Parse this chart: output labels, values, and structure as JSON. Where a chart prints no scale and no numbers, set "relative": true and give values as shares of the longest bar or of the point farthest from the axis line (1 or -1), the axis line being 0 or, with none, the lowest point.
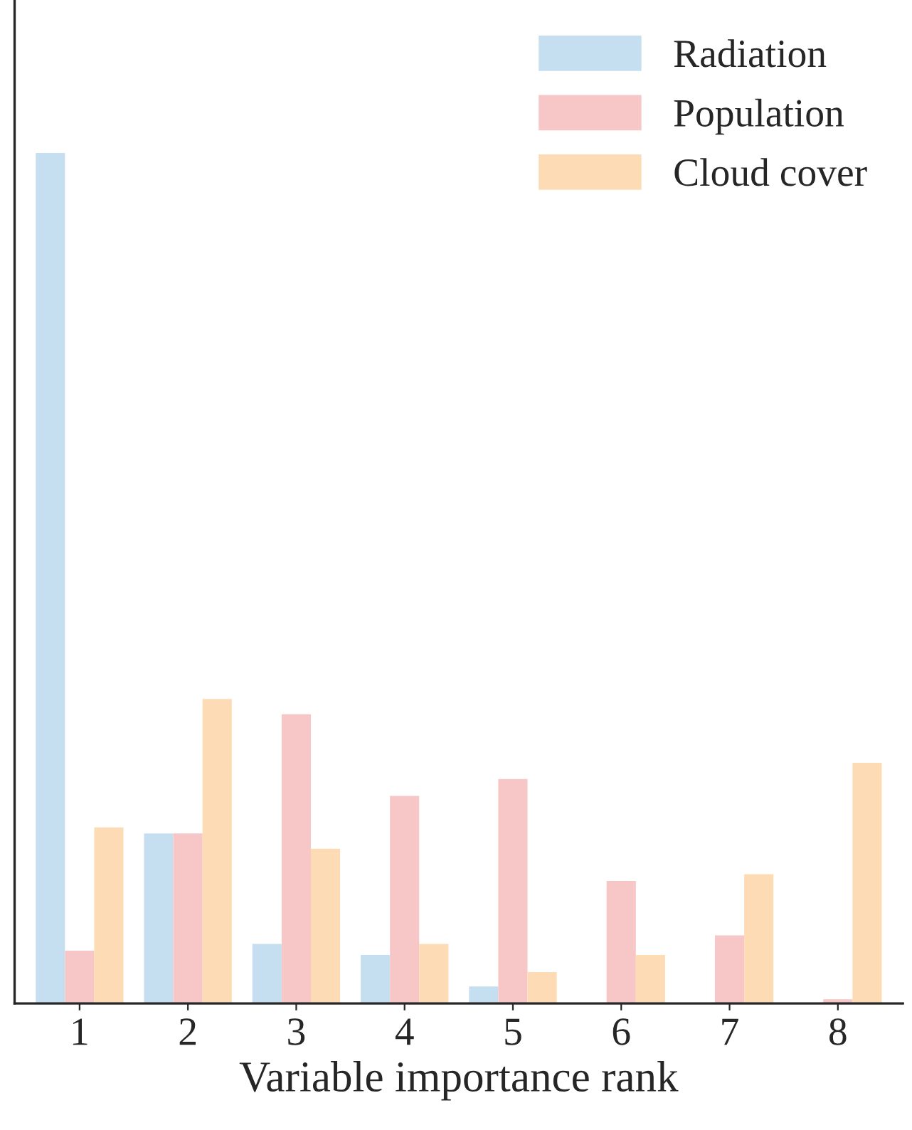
{
  "chart_data": {
    "type": "bar",
    "xlabel": "Variable importance rank",
    "relative": true,
    "tick_labels": "x",
    "legend": "top right",
    "grid": false,
    "categories": [
      "1",
      "2",
      "3",
      "4",
      "5",
      "6",
      "7",
      "8"
    ],
    "series": [
      {
        "name": "Radiation",
        "color": "#c6dff0",
        "values": [
          1.0,
          0.2,
          0.07,
          0.057,
          0.02,
          0,
          0,
          0
        ]
      },
      {
        "name": "Population",
        "color": "#f7c6c6",
        "values": [
          0.062,
          0.2,
          0.34,
          0.244,
          0.264,
          0.144,
          0.08,
          0.005
        ]
      },
      {
        "name": "Cloud cover",
        "color": "#fddcb5",
        "values": [
          0.207,
          0.358,
          0.182,
          0.07,
          0.037,
          0.057,
          0.152,
          0.283
        ]
      }
    ]
  }
}
